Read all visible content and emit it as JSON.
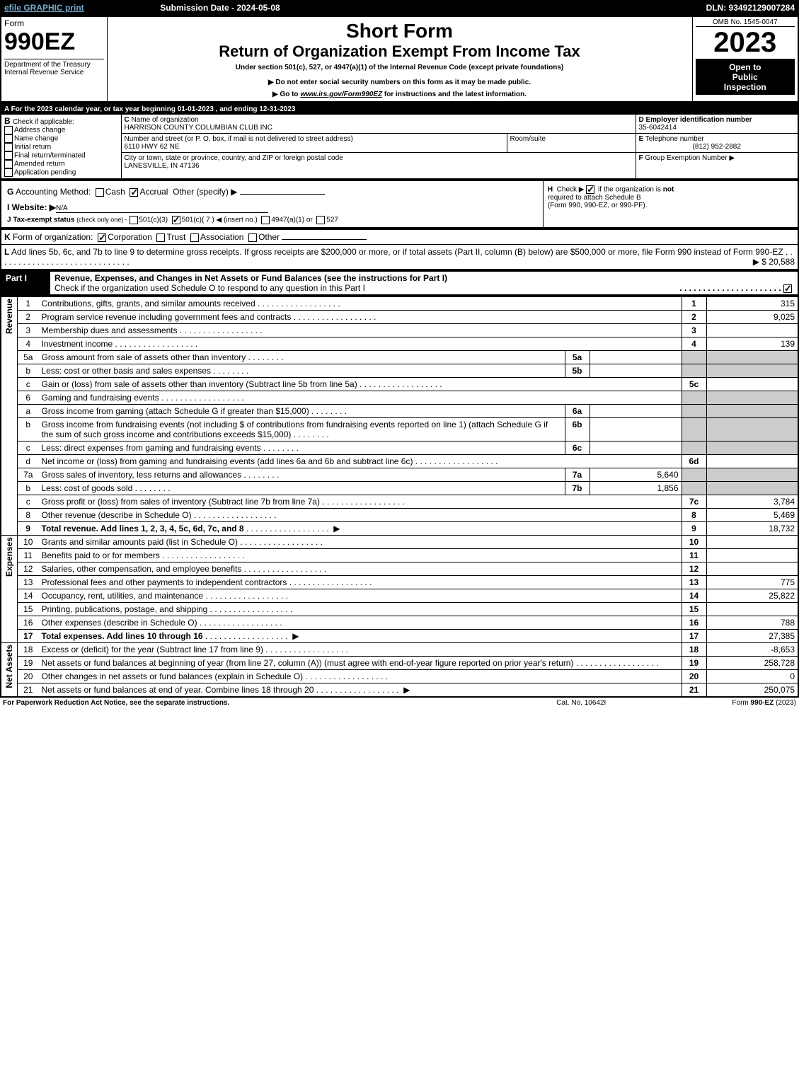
{
  "topbar": {
    "efile": "efile GRAPHIC print",
    "sub_date_label": "Submission Date - 2024-05-08",
    "dln": "DLN: 93492129007284"
  },
  "header": {
    "form_word": "Form",
    "form_num": "990EZ",
    "dept": "Department of the Treasury",
    "irs": "Internal Revenue Service",
    "short_form": "Short Form",
    "title": "Return of Organization Exempt From Income Tax",
    "subtitle": "Under section 501(c), 527, or 4947(a)(1) of the Internal Revenue Code (except private foundations)",
    "warn": "▶ Do not enter social security numbers on this form as it may be made public.",
    "goto": "▶ Go to www.irs.gov/Form990EZ for instructions and the latest information.",
    "omb": "OMB No. 1545-0047",
    "year": "2023",
    "open1": "Open to",
    "open2": "Public",
    "open3": "Inspection"
  },
  "sectionA": {
    "A": "A  For the 2023 calendar year, or tax year beginning 01-01-2023 , and ending 12-31-2023",
    "B_label": "B",
    "B_text": "Check if applicable:",
    "B_opts": [
      "Address change",
      "Name change",
      "Initial return",
      "Final return/terminated",
      "Amended return",
      "Application pending"
    ],
    "C_label": "C",
    "C_text": "Name of organization",
    "org_name": "HARRISON COUNTY COLUMBIAN CLUB INC",
    "street_label": "Number and street (or P. O. box, if mail is not delivered to street address)",
    "room_label": "Room/suite",
    "street": "6110 HWY 62 NE",
    "city_label": "City or town, state or province, country, and ZIP or foreign postal code",
    "city": "LANESVILLE, IN  47136",
    "D_label": "D Employer identification number",
    "ein": "35-6042414",
    "E_label": "E",
    "E_text": "Telephone number",
    "phone": "(812) 952-2882",
    "F_label": "F",
    "F_text": "Group Exemption Number ▶"
  },
  "sectionG": {
    "G_label": "G",
    "G_text": "Accounting Method:",
    "cash": "Cash",
    "accrual": "Accrual",
    "other": "Other (specify) ▶",
    "I_label": "I Website: ▶",
    "website": "N/A",
    "J_label": "J Tax-exempt status",
    "J_note": "(check only one) -",
    "j1": "501(c)(3)",
    "j2": "501(c)( 7 ) ◀ (insert no.)",
    "j3": "4947(a)(1) or",
    "j4": "527",
    "H_label": "H",
    "H_text1": "Check ▶",
    "H_text2": "if the organization is not required to attach Schedule B",
    "H_text3": "(Form 990, 990-EZ, or 990-PF)."
  },
  "sectionK": {
    "K_label": "K",
    "K_text": "Form of organization:",
    "corp": "Corporation",
    "trust": "Trust",
    "assoc": "Association",
    "other": "Other",
    "L_label": "L",
    "L_text": "Add lines 5b, 6c, and 7b to line 9 to determine gross receipts. If gross receipts are $200,000 or more, or if total assets (Part II, column (B) below) are $500,000 or more, file Form 990 instead of Form 990-EZ",
    "L_amount": "▶ $ 20,588"
  },
  "part1": {
    "header": "Part I",
    "title": "Revenue, Expenses, and Changes in Net Assets or Fund Balances (see the instructions for Part I)",
    "check_line": "Check if the organization used Schedule O to respond to any question in this Part I",
    "sections": {
      "revenue": "Revenue",
      "expenses": "Expenses",
      "netassets": "Net Assets"
    },
    "rows": [
      {
        "n": "1",
        "desc": "Contributions, gifts, grants, and similar amounts received",
        "box": "1",
        "val": "315"
      },
      {
        "n": "2",
        "desc": "Program service revenue including government fees and contracts",
        "box": "2",
        "val": "9,025"
      },
      {
        "n": "3",
        "desc": "Membership dues and assessments",
        "box": "3",
        "val": ""
      },
      {
        "n": "4",
        "desc": "Investment income",
        "box": "4",
        "val": "139"
      },
      {
        "n": "5a",
        "desc": "Gross amount from sale of assets other than inventory",
        "sub": "5a",
        "subval": ""
      },
      {
        "n": "b",
        "desc": "Less: cost or other basis and sales expenses",
        "sub": "5b",
        "subval": ""
      },
      {
        "n": "c",
        "desc": "Gain or (loss) from sale of assets other than inventory (Subtract line 5b from line 5a)",
        "box": "5c",
        "val": ""
      },
      {
        "n": "6",
        "desc": "Gaming and fundraising events"
      },
      {
        "n": "a",
        "desc": "Gross income from gaming (attach Schedule G if greater than $15,000)",
        "sub": "6a",
        "subval": ""
      },
      {
        "n": "b",
        "desc": "Gross income from fundraising events (not including $                    of contributions from fundraising events reported on line 1) (attach Schedule G if the sum of such gross income and contributions exceeds $15,000)",
        "sub": "6b",
        "subval": ""
      },
      {
        "n": "c",
        "desc": "Less: direct expenses from gaming and fundraising events",
        "sub": "6c",
        "subval": ""
      },
      {
        "n": "d",
        "desc": "Net income or (loss) from gaming and fundraising events (add lines 6a and 6b and subtract line 6c)",
        "box": "6d",
        "val": ""
      },
      {
        "n": "7a",
        "desc": "Gross sales of inventory, less returns and allowances",
        "sub": "7a",
        "subval": "5,640"
      },
      {
        "n": "b",
        "desc": "Less: cost of goods sold",
        "sub": "7b",
        "subval": "1,856"
      },
      {
        "n": "c",
        "desc": "Gross profit or (loss) from sales of inventory (Subtract line 7b from line 7a)",
        "box": "7c",
        "val": "3,784"
      },
      {
        "n": "8",
        "desc": "Other revenue (describe in Schedule O)",
        "box": "8",
        "val": "5,469"
      },
      {
        "n": "9",
        "desc": "Total revenue. Add lines 1, 2, 3, 4, 5c, 6d, 7c, and 8",
        "box": "9",
        "val": "18,732",
        "bold": true,
        "arrow": true
      },
      {
        "n": "10",
        "desc": "Grants and similar amounts paid (list in Schedule O)",
        "box": "10",
        "val": ""
      },
      {
        "n": "11",
        "desc": "Benefits paid to or for members",
        "box": "11",
        "val": ""
      },
      {
        "n": "12",
        "desc": "Salaries, other compensation, and employee benefits",
        "box": "12",
        "val": ""
      },
      {
        "n": "13",
        "desc": "Professional fees and other payments to independent contractors",
        "box": "13",
        "val": "775"
      },
      {
        "n": "14",
        "desc": "Occupancy, rent, utilities, and maintenance",
        "box": "14",
        "val": "25,822"
      },
      {
        "n": "15",
        "desc": "Printing, publications, postage, and shipping",
        "box": "15",
        "val": ""
      },
      {
        "n": "16",
        "desc": "Other expenses (describe in Schedule O)",
        "box": "16",
        "val": "788"
      },
      {
        "n": "17",
        "desc": "Total expenses. Add lines 10 through 16",
        "box": "17",
        "val": "27,385",
        "bold": true,
        "arrow": true
      },
      {
        "n": "18",
        "desc": "Excess or (deficit) for the year (Subtract line 17 from line 9)",
        "box": "18",
        "val": "-8,653"
      },
      {
        "n": "19",
        "desc": "Net assets or fund balances at beginning of year (from line 27, column (A)) (must agree with end-of-year figure reported on prior year's return)",
        "box": "19",
        "val": "258,728"
      },
      {
        "n": "20",
        "desc": "Other changes in net assets or fund balances (explain in Schedule O)",
        "box": "20",
        "val": "0"
      },
      {
        "n": "21",
        "desc": "Net assets or fund balances at end of year. Combine lines 18 through 20",
        "box": "21",
        "val": "250,075",
        "arrow": true
      }
    ]
  },
  "footer": {
    "paperwork": "For Paperwork Reduction Act Notice, see the separate instructions.",
    "cat": "Cat. No. 10642I",
    "form": "Form 990-EZ (2023)"
  }
}
